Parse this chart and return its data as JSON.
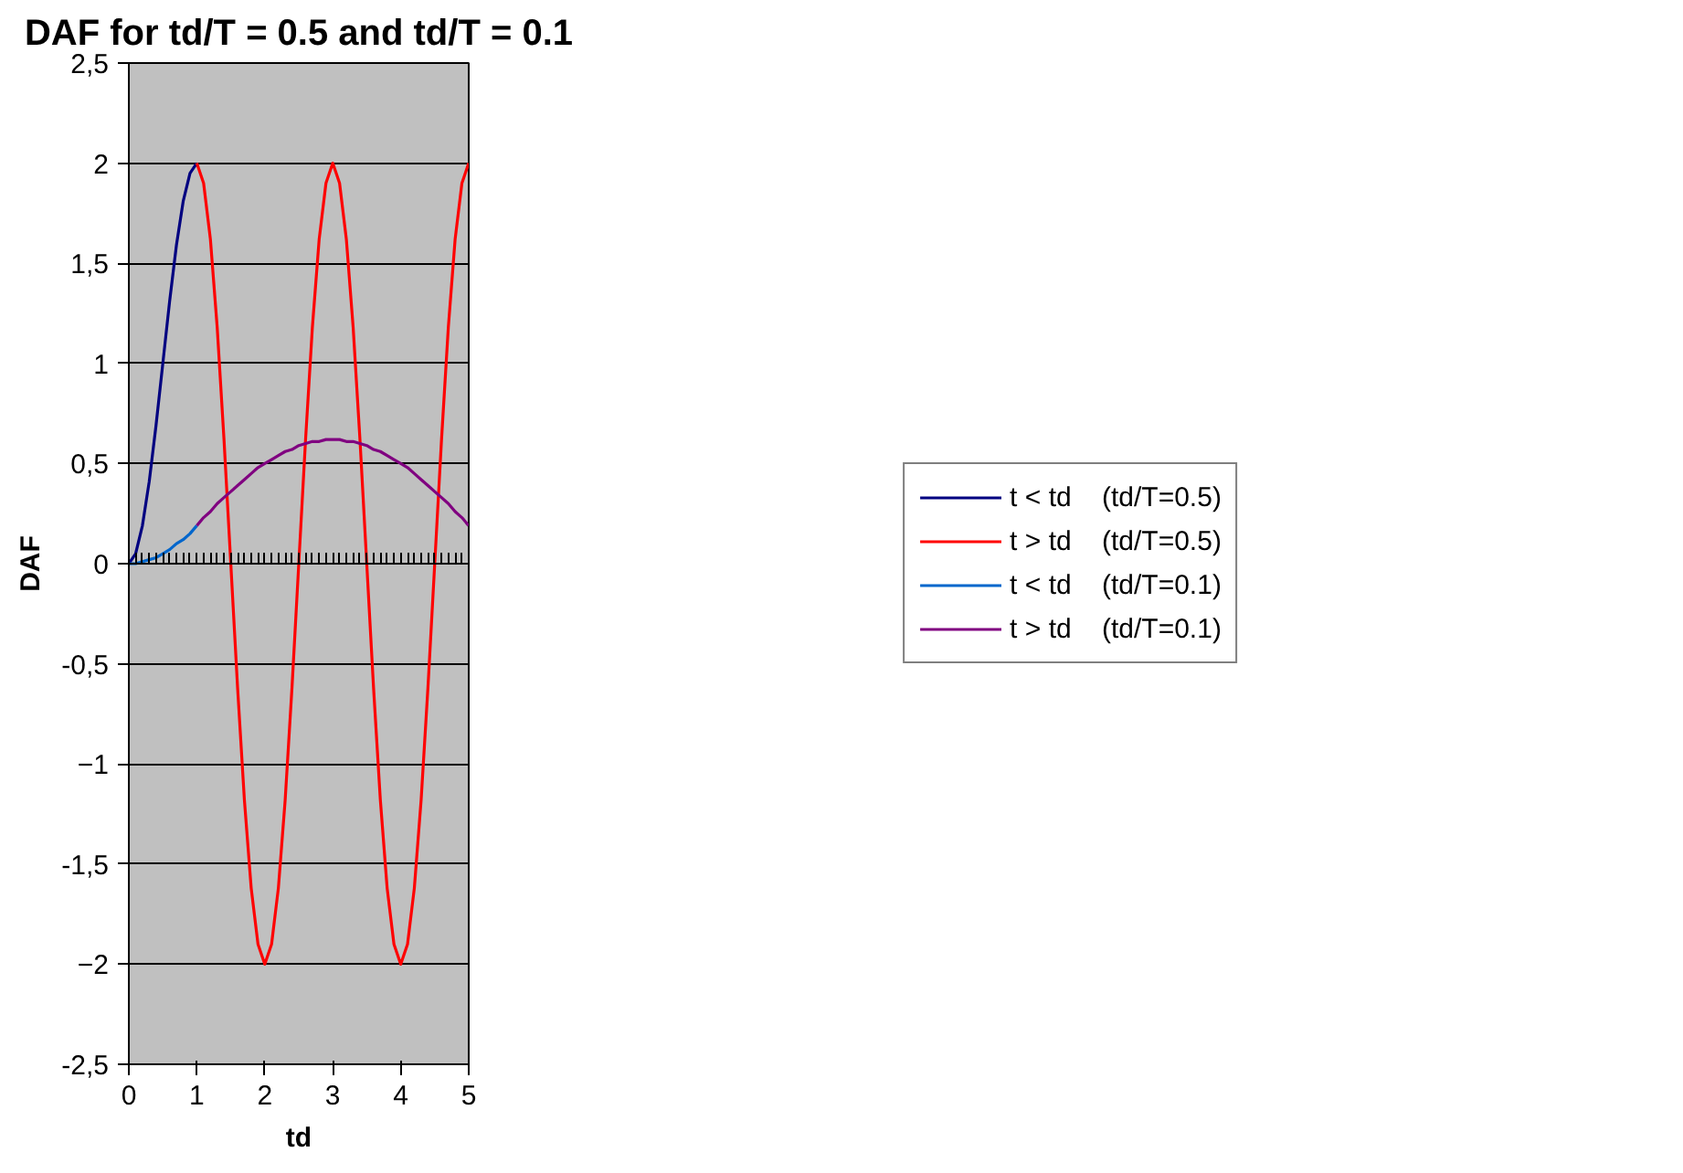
{
  "chart_data": {
    "type": "line",
    "title": "DAF for td/T = 0.5 and td/T = 0.1",
    "xlabel": "td",
    "ylabel": "DAF",
    "xlim": [
      0,
      5
    ],
    "xticks": [
      0,
      1,
      2,
      3,
      4,
      5
    ],
    "ylim": [
      -2.5,
      2.5
    ],
    "yticks": [
      {
        "value": -2.5,
        "label": "-2,5"
      },
      -2,
      {
        "value": -1.5,
        "label": "-1,5"
      },
      -1,
      {
        "value": -0.5,
        "label": "-0,5"
      },
      0,
      {
        "value": 0.5,
        "label": "0,5"
      },
      1,
      {
        "value": 1.5,
        "label": "1,5"
      },
      2,
      {
        "value": 2.5,
        "label": "2,5"
      }
    ],
    "grid": "y",
    "legend": "right",
    "marker": "none",
    "line_style": "solid",
    "series": [
      {
        "name": "t < td    (td/T=0.5)",
        "color": "#000080",
        "x": [
          0,
          0.1,
          0.2,
          0.3,
          0.4,
          0.5,
          0.6,
          0.7,
          0.8,
          0.9,
          1.0
        ],
        "values": [
          0,
          0.05,
          0.19,
          0.41,
          0.69,
          1,
          1.31,
          1.59,
          1.81,
          1.95,
          2
        ]
      },
      {
        "name": "t > td    (td/T=0.5)",
        "color": "#ff0000",
        "x": [
          1.0,
          1.1,
          1.2,
          1.3,
          1.4,
          1.5,
          1.6,
          1.7,
          1.8,
          1.9,
          2.0,
          2.1,
          2.2,
          2.3,
          2.4,
          2.5,
          2.6,
          2.7,
          2.8,
          2.9,
          3.0,
          3.1,
          3.2,
          3.3,
          3.4,
          3.5,
          3.6,
          3.7,
          3.8,
          3.9,
          4.0,
          4.1,
          4.2,
          4.3,
          4.4,
          4.5,
          4.6,
          4.7,
          4.8,
          4.9,
          5.0
        ],
        "values": [
          2,
          1.9,
          1.62,
          1.18,
          0.62,
          0,
          -0.62,
          -1.18,
          -1.62,
          -1.9,
          -2,
          -1.9,
          -1.62,
          -1.18,
          -0.62,
          0,
          0.62,
          1.18,
          1.62,
          1.9,
          2,
          1.9,
          1.62,
          1.18,
          0.62,
          0,
          -0.62,
          -1.18,
          -1.62,
          -1.9,
          -2,
          -1.9,
          -1.62,
          -1.18,
          -0.62,
          0,
          0.62,
          1.18,
          1.62,
          1.9,
          2
        ]
      },
      {
        "name": "t < td    (td/T=0.1)",
        "color": "#0066cc",
        "x": [
          0,
          0.1,
          0.2,
          0.3,
          0.4,
          0.5,
          0.6,
          0.7,
          0.8,
          0.9,
          1.0
        ],
        "values": [
          0,
          0,
          0.01,
          0.02,
          0.03,
          0.05,
          0.07,
          0.1,
          0.12,
          0.15,
          0.19
        ]
      },
      {
        "name": "t > td    (td/T=0.1)",
        "color": "#800080",
        "x": [
          1.0,
          1.1,
          1.2,
          1.3,
          1.4,
          1.5,
          1.6,
          1.7,
          1.8,
          1.9,
          2.0,
          2.1,
          2.2,
          2.3,
          2.4,
          2.5,
          2.6,
          2.7,
          2.8,
          2.9,
          3.0,
          3.1,
          3.2,
          3.3,
          3.4,
          3.5,
          3.6,
          3.7,
          3.8,
          3.9,
          4.0,
          4.1,
          4.2,
          4.3,
          4.4,
          4.5,
          4.6,
          4.7,
          4.8,
          4.9,
          5.0
        ],
        "values": [
          0.19,
          0.23,
          0.26,
          0.3,
          0.33,
          0.36,
          0.39,
          0.42,
          0.45,
          0.48,
          0.5,
          0.52,
          0.54,
          0.56,
          0.57,
          0.59,
          0.6,
          0.61,
          0.61,
          0.62,
          0.62,
          0.62,
          0.61,
          0.61,
          0.6,
          0.59,
          0.57,
          0.56,
          0.54,
          0.52,
          0.5,
          0.48,
          0.45,
          0.42,
          0.39,
          0.36,
          0.33,
          0.3,
          0.26,
          0.23,
          0.19
        ]
      }
    ]
  }
}
